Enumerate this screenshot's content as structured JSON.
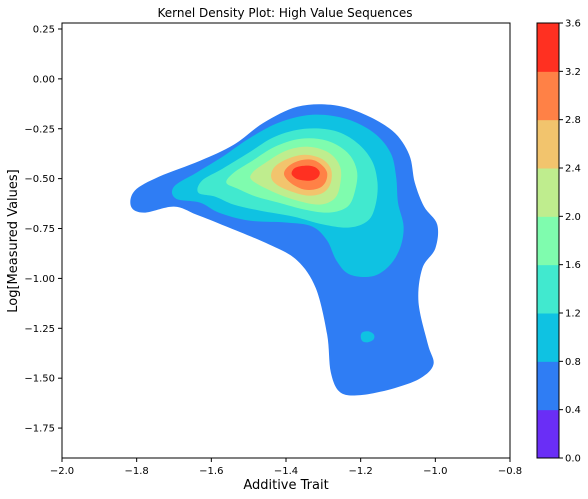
{
  "chart_data": {
    "type": "kde-contour",
    "title": "Kernel Density Plot: High Value Sequences",
    "xlabel": "Additive Trait",
    "ylabel": "Log[Measured Values]",
    "xlim": [
      -2.0,
      -0.8
    ],
    "ylim": [
      -1.9,
      0.28
    ],
    "x_ticks": [
      -2.0,
      -1.8,
      -1.6,
      -1.4,
      -1.2,
      -1.0,
      -0.8
    ],
    "x_tick_labels": [
      "−2.0",
      "−1.8",
      "−1.6",
      "−1.4",
      "−1.2",
      "−1.0",
      "−0.8"
    ],
    "y_ticks": [
      0.25,
      0.0,
      -0.25,
      -0.5,
      -0.75,
      -1.0,
      -1.25,
      -1.5,
      -1.75
    ],
    "y_tick_labels": [
      "0.25",
      "0.00",
      "−0.25",
      "−0.50",
      "−0.75",
      "−1.00",
      "−1.25",
      "−1.50",
      "−1.75"
    ],
    "grid": false,
    "colorbar": {
      "levels": [
        0.0,
        0.4,
        0.8,
        1.2,
        1.6,
        2.0,
        2.4,
        2.8,
        3.2,
        3.6
      ],
      "tick_labels": [
        "0.0",
        "0.4",
        "0.8",
        "1.2",
        "1.6",
        "2.0",
        "2.4",
        "2.8",
        "3.2",
        "3.6"
      ],
      "colors": [
        "#6a2ef6",
        "#2f7df4",
        "#0fc2e2",
        "#41e9cf",
        "#7ffcae",
        "#bfed8e",
        "#f2c46d",
        "#ff8146",
        "#ff3021"
      ]
    },
    "density_regions": [
      {
        "level": 0.4,
        "points": [
          [
            -1.7,
            -0.64
          ],
          [
            -1.78,
            -0.67
          ],
          [
            -1.815,
            -0.64
          ],
          [
            -1.805,
            -0.56
          ],
          [
            -1.74,
            -0.49
          ],
          [
            -1.63,
            -0.41
          ],
          [
            -1.54,
            -0.33
          ],
          [
            -1.46,
            -0.22
          ],
          [
            -1.37,
            -0.14
          ],
          [
            -1.28,
            -0.13
          ],
          [
            -1.2,
            -0.17
          ],
          [
            -1.115,
            -0.26
          ],
          [
            -1.07,
            -0.38
          ],
          [
            -1.055,
            -0.52
          ],
          [
            -1.03,
            -0.64
          ],
          [
            -0.995,
            -0.73
          ],
          [
            -1.0,
            -0.85
          ],
          [
            -1.035,
            -0.95
          ],
          [
            -1.045,
            -1.12
          ],
          [
            -1.02,
            -1.33
          ],
          [
            -1.005,
            -1.43
          ],
          [
            -1.04,
            -1.5
          ],
          [
            -1.11,
            -1.55
          ],
          [
            -1.2,
            -1.585
          ],
          [
            -1.255,
            -1.57
          ],
          [
            -1.28,
            -1.47
          ],
          [
            -1.29,
            -1.28
          ],
          [
            -1.32,
            -1.05
          ],
          [
            -1.37,
            -0.91
          ],
          [
            -1.445,
            -0.83
          ],
          [
            -1.56,
            -0.74
          ],
          [
            -1.64,
            -0.68
          ]
        ]
      },
      {
        "level": 0.8,
        "points": [
          [
            -1.63,
            -0.62
          ],
          [
            -1.695,
            -0.6
          ],
          [
            -1.7,
            -0.54
          ],
          [
            -1.64,
            -0.47
          ],
          [
            -1.57,
            -0.39
          ],
          [
            -1.5,
            -0.3
          ],
          [
            -1.42,
            -0.22
          ],
          [
            -1.33,
            -0.18
          ],
          [
            -1.24,
            -0.2
          ],
          [
            -1.165,
            -0.27
          ],
          [
            -1.12,
            -0.37
          ],
          [
            -1.105,
            -0.49
          ],
          [
            -1.1,
            -0.62
          ],
          [
            -1.085,
            -0.74
          ],
          [
            -1.095,
            -0.85
          ],
          [
            -1.125,
            -0.94
          ],
          [
            -1.17,
            -0.99
          ],
          [
            -1.23,
            -0.98
          ],
          [
            -1.265,
            -0.91
          ],
          [
            -1.29,
            -0.81
          ],
          [
            -1.33,
            -0.74
          ],
          [
            -1.4,
            -0.72
          ],
          [
            -1.5,
            -0.71
          ],
          [
            -1.58,
            -0.67
          ]
        ]
      },
      {
        "level": 1.2,
        "points": [
          [
            -1.59,
            -0.59
          ],
          [
            -1.635,
            -0.57
          ],
          [
            -1.625,
            -0.51
          ],
          [
            -1.57,
            -0.45
          ],
          [
            -1.5,
            -0.37
          ],
          [
            -1.43,
            -0.29
          ],
          [
            -1.35,
            -0.25
          ],
          [
            -1.27,
            -0.26
          ],
          [
            -1.21,
            -0.32
          ],
          [
            -1.17,
            -0.41
          ],
          [
            -1.155,
            -0.52
          ],
          [
            -1.16,
            -0.63
          ],
          [
            -1.18,
            -0.71
          ],
          [
            -1.23,
            -0.745
          ],
          [
            -1.3,
            -0.73
          ],
          [
            -1.38,
            -0.69
          ],
          [
            -1.47,
            -0.66
          ],
          [
            -1.54,
            -0.63
          ]
        ]
      },
      {
        "level": 1.6,
        "points": [
          [
            -1.53,
            -0.55
          ],
          [
            -1.56,
            -0.52
          ],
          [
            -1.54,
            -0.47
          ],
          [
            -1.49,
            -0.41
          ],
          [
            -1.43,
            -0.34
          ],
          [
            -1.36,
            -0.3
          ],
          [
            -1.29,
            -0.31
          ],
          [
            -1.235,
            -0.37
          ],
          [
            -1.21,
            -0.46
          ],
          [
            -1.215,
            -0.56
          ],
          [
            -1.235,
            -0.64
          ],
          [
            -1.285,
            -0.67
          ],
          [
            -1.35,
            -0.655
          ],
          [
            -1.42,
            -0.62
          ],
          [
            -1.48,
            -0.59
          ]
        ]
      },
      {
        "level": 2.0,
        "points": [
          [
            -1.49,
            -0.51
          ],
          [
            -1.49,
            -0.47
          ],
          [
            -1.455,
            -0.42
          ],
          [
            -1.4,
            -0.36
          ],
          [
            -1.34,
            -0.34
          ],
          [
            -1.285,
            -0.37
          ],
          [
            -1.255,
            -0.44
          ],
          [
            -1.255,
            -0.53
          ],
          [
            -1.27,
            -0.6
          ],
          [
            -1.31,
            -0.63
          ],
          [
            -1.37,
            -0.61
          ],
          [
            -1.43,
            -0.57
          ]
        ]
      },
      {
        "level": 2.4,
        "points": [
          [
            -1.44,
            -0.49
          ],
          [
            -1.43,
            -0.44
          ],
          [
            -1.395,
            -0.4
          ],
          [
            -1.35,
            -0.38
          ],
          [
            -1.305,
            -0.4
          ],
          [
            -1.28,
            -0.45
          ],
          [
            -1.28,
            -0.52
          ],
          [
            -1.3,
            -0.57
          ],
          [
            -1.34,
            -0.585
          ],
          [
            -1.385,
            -0.565
          ],
          [
            -1.425,
            -0.53
          ]
        ]
      },
      {
        "level": 2.8,
        "points": [
          [
            -1.405,
            -0.48
          ],
          [
            -1.395,
            -0.44
          ],
          [
            -1.365,
            -0.41
          ],
          [
            -1.33,
            -0.405
          ],
          [
            -1.305,
            -0.43
          ],
          [
            -1.29,
            -0.47
          ],
          [
            -1.295,
            -0.52
          ],
          [
            -1.315,
            -0.55
          ],
          [
            -1.35,
            -0.555
          ],
          [
            -1.385,
            -0.525
          ]
        ]
      },
      {
        "level": 3.2,
        "points": [
          [
            -1.385,
            -0.47
          ],
          [
            -1.375,
            -0.445
          ],
          [
            -1.35,
            -0.435
          ],
          [
            -1.325,
            -0.44
          ],
          [
            -1.31,
            -0.465
          ],
          [
            -1.315,
            -0.495
          ],
          [
            -1.335,
            -0.51
          ],
          [
            -1.365,
            -0.505
          ],
          [
            -1.38,
            -0.49
          ]
        ]
      },
      {
        "level": 0.8,
        "points": [
          [
            -1.195,
            -1.27
          ],
          [
            -1.18,
            -1.265
          ],
          [
            -1.165,
            -1.28
          ],
          [
            -1.165,
            -1.305
          ],
          [
            -1.18,
            -1.32
          ],
          [
            -1.195,
            -1.315
          ],
          [
            -1.2,
            -1.29
          ]
        ]
      }
    ]
  }
}
